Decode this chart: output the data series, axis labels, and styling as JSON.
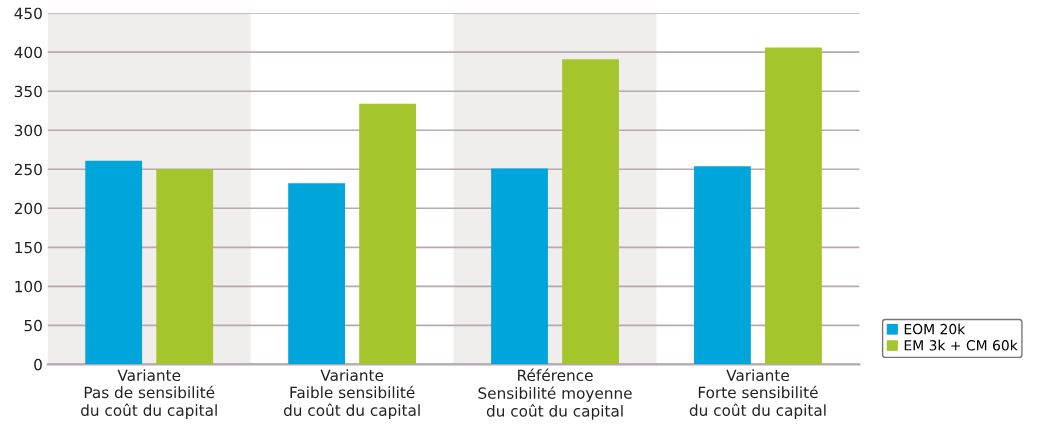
{
  "chart_data": {
    "type": "bar",
    "categories": [
      "Variante\nPas de sensibilité\ndu coût du capital",
      "Variante\nFaible sensibilité\ndu coût du capital",
      "Référence\nSensibilité moyenne\ndu coût du capital",
      "Variante\nForte sensibilité\ndu coût du capital"
    ],
    "series": [
      {
        "name": "EOM 20k",
        "color": "#00a5dc",
        "values": [
          261,
          232,
          251,
          254
        ]
      },
      {
        "name": "EM 3k + CM 60k",
        "color": "#a5c52d",
        "values": [
          250,
          334,
          391,
          406
        ]
      }
    ],
    "ylim": [
      0,
      450
    ],
    "yticks": [
      0,
      50,
      100,
      150,
      200,
      250,
      300,
      350,
      400,
      450
    ],
    "grid": "y",
    "legend": "bottom right",
    "bands": [
      {
        "axis": "x",
        "from": "Variante\nPas de sensibilité\ndu coût du capital",
        "to": "Variante\nPas de sensibilité\ndu coût du capital",
        "color": "#f0eded"
      },
      {
        "axis": "x",
        "from": "Référence\nSensibilité moyenne\ndu coût du capital",
        "to": "Référence\nSensibilité moyenne\ndu coût du capital",
        "color": "#f0eded"
      }
    ]
  }
}
